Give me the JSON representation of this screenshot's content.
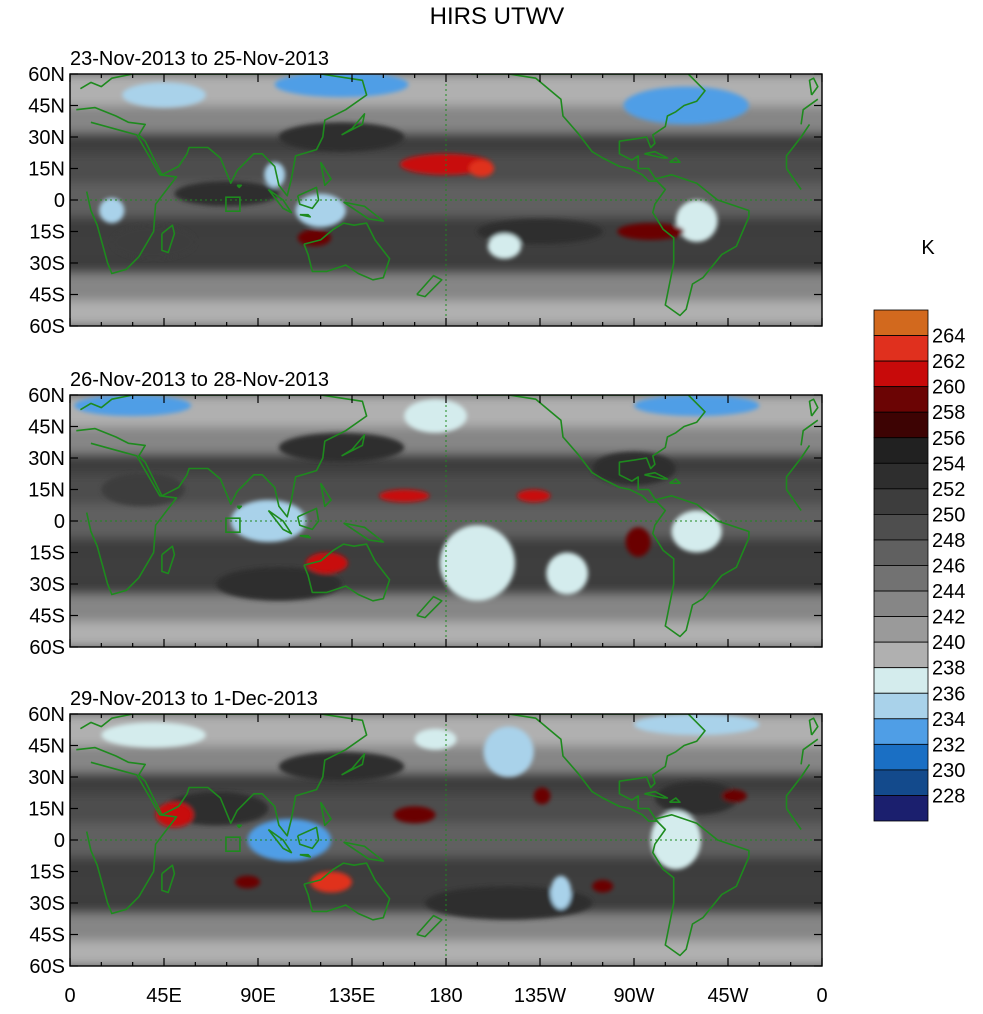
{
  "chart_data": {
    "type": "heatmap",
    "title": "HIRS UTWV",
    "colorbar": {
      "unit": "K",
      "levels": [
        228,
        230,
        232,
        234,
        236,
        238,
        240,
        242,
        244,
        246,
        248,
        250,
        252,
        254,
        256,
        258,
        260,
        262,
        264
      ],
      "colors": [
        "#1b1f6e",
        "#134a8c",
        "#1a6fc4",
        "#4f9ee6",
        "#a9d2ea",
        "#d4eced",
        "#b0b0b0",
        "#9a9a9a",
        "#868686",
        "#727272",
        "#606060",
        "#4e4e4e",
        "#3d3d3d",
        "#2e2e2e",
        "#212121",
        "#3d0303",
        "#6b0404",
        "#c80a0a",
        "#e0301e",
        "#d2691e"
      ]
    },
    "x_ticks": [
      "0",
      "45E",
      "90E",
      "135E",
      "180",
      "135W",
      "90W",
      "45W",
      "0"
    ],
    "y_ticks": [
      "60N",
      "45N",
      "30N",
      "15N",
      "0",
      "15S",
      "30S",
      "45S",
      "60S"
    ],
    "xlim": [
      0,
      360
    ],
    "ylim": [
      -60,
      60
    ],
    "panels": [
      {
        "subtitle": "23-Nov-2013 to 25-Nov-2013",
        "features": [
          {
            "lon": 180,
            "lat": 17,
            "value": 260,
            "rx": 22,
            "ry": 5
          },
          {
            "lon": 197,
            "lat": 15,
            "value": 262,
            "rx": 6,
            "ry": 4
          },
          {
            "lon": 117,
            "lat": -18,
            "value": 259,
            "rx": 8,
            "ry": 4
          },
          {
            "lon": 278,
            "lat": -15,
            "value": 259,
            "rx": 16,
            "ry": 4
          },
          {
            "lon": 130,
            "lat": 30,
            "value": 252,
            "rx": 30,
            "ry": 7
          },
          {
            "lon": 225,
            "lat": -15,
            "value": 252,
            "rx": 30,
            "ry": 6
          },
          {
            "lon": 75,
            "lat": 3,
            "value": 252,
            "rx": 25,
            "ry": 6
          },
          {
            "lon": 40,
            "lat": -20,
            "value": 250,
            "rx": 20,
            "ry": 8
          },
          {
            "lon": 130,
            "lat": 55,
            "value": 233,
            "rx": 32,
            "ry": 6
          },
          {
            "lon": 45,
            "lat": 50,
            "value": 235,
            "rx": 20,
            "ry": 6
          },
          {
            "lon": 295,
            "lat": 45,
            "value": 233,
            "rx": 30,
            "ry": 9
          },
          {
            "lon": 120,
            "lat": -5,
            "value": 234,
            "rx": 12,
            "ry": 8
          },
          {
            "lon": 98,
            "lat": 12,
            "value": 235,
            "rx": 5,
            "ry": 6
          },
          {
            "lon": 300,
            "lat": -10,
            "value": 236,
            "rx": 10,
            "ry": 10
          },
          {
            "lon": 208,
            "lat": -22,
            "value": 237,
            "rx": 8,
            "ry": 6
          },
          {
            "lon": 20,
            "lat": -5,
            "value": 235,
            "rx": 6,
            "ry": 6
          }
        ]
      },
      {
        "subtitle": "26-Nov-2013 to 28-Nov-2013",
        "features": [
          {
            "lon": 160,
            "lat": 12,
            "value": 260,
            "rx": 12,
            "ry": 3
          },
          {
            "lon": 222,
            "lat": 12,
            "value": 260,
            "rx": 8,
            "ry": 3
          },
          {
            "lon": 123,
            "lat": -20,
            "value": 260,
            "rx": 10,
            "ry": 5
          },
          {
            "lon": 272,
            "lat": -10,
            "value": 259,
            "rx": 6,
            "ry": 7
          },
          {
            "lon": 130,
            "lat": 35,
            "value": 252,
            "rx": 30,
            "ry": 7
          },
          {
            "lon": 270,
            "lat": 25,
            "value": 252,
            "rx": 20,
            "ry": 8
          },
          {
            "lon": 100,
            "lat": -30,
            "value": 252,
            "rx": 30,
            "ry": 8
          },
          {
            "lon": 35,
            "lat": 15,
            "value": 250,
            "rx": 20,
            "ry": 8
          },
          {
            "lon": 30,
            "lat": 55,
            "value": 233,
            "rx": 28,
            "ry": 5
          },
          {
            "lon": 300,
            "lat": 55,
            "value": 233,
            "rx": 30,
            "ry": 5
          },
          {
            "lon": 95,
            "lat": 0,
            "value": 234,
            "rx": 18,
            "ry": 10
          },
          {
            "lon": 195,
            "lat": -20,
            "value": 236,
            "rx": 18,
            "ry": 18
          },
          {
            "lon": 238,
            "lat": -25,
            "value": 236,
            "rx": 10,
            "ry": 10
          },
          {
            "lon": 300,
            "lat": -5,
            "value": 236,
            "rx": 12,
            "ry": 10
          },
          {
            "lon": 175,
            "lat": 50,
            "value": 236,
            "rx": 15,
            "ry": 8
          }
        ]
      },
      {
        "subtitle": "29-Nov-2013 to 1-Dec-2013",
        "features": [
          {
            "lon": 50,
            "lat": 12,
            "value": 260,
            "rx": 9,
            "ry": 6
          },
          {
            "lon": 165,
            "lat": 12,
            "value": 259,
            "rx": 10,
            "ry": 4
          },
          {
            "lon": 125,
            "lat": -20,
            "value": 262,
            "rx": 10,
            "ry": 5
          },
          {
            "lon": 85,
            "lat": -20,
            "value": 258,
            "rx": 6,
            "ry": 3
          },
          {
            "lon": 226,
            "lat": 21,
            "value": 259,
            "rx": 4,
            "ry": 4
          },
          {
            "lon": 255,
            "lat": -22,
            "value": 258,
            "rx": 5,
            "ry": 3
          },
          {
            "lon": 318,
            "lat": 21,
            "value": 258,
            "rx": 6,
            "ry": 3
          },
          {
            "lon": 70,
            "lat": 15,
            "value": 252,
            "rx": 25,
            "ry": 8
          },
          {
            "lon": 130,
            "lat": 35,
            "value": 252,
            "rx": 30,
            "ry": 7
          },
          {
            "lon": 210,
            "lat": -30,
            "value": 252,
            "rx": 40,
            "ry": 8
          },
          {
            "lon": 300,
            "lat": 20,
            "value": 252,
            "rx": 20,
            "ry": 8
          },
          {
            "lon": 105,
            "lat": 0,
            "value": 233,
            "rx": 20,
            "ry": 10
          },
          {
            "lon": 300,
            "lat": 55,
            "value": 234,
            "rx": 30,
            "ry": 5
          },
          {
            "lon": 40,
            "lat": 50,
            "value": 236,
            "rx": 25,
            "ry": 6
          },
          {
            "lon": 210,
            "lat": 42,
            "value": 234,
            "rx": 12,
            "ry": 12
          },
          {
            "lon": 290,
            "lat": 0,
            "value": 236,
            "rx": 12,
            "ry": 14
          },
          {
            "lon": 235,
            "lat": -25,
            "value": 234,
            "rx": 5,
            "ry": 8
          },
          {
            "lon": 175,
            "lat": 48,
            "value": 236,
            "rx": 10,
            "ry": 5
          }
        ]
      }
    ]
  }
}
